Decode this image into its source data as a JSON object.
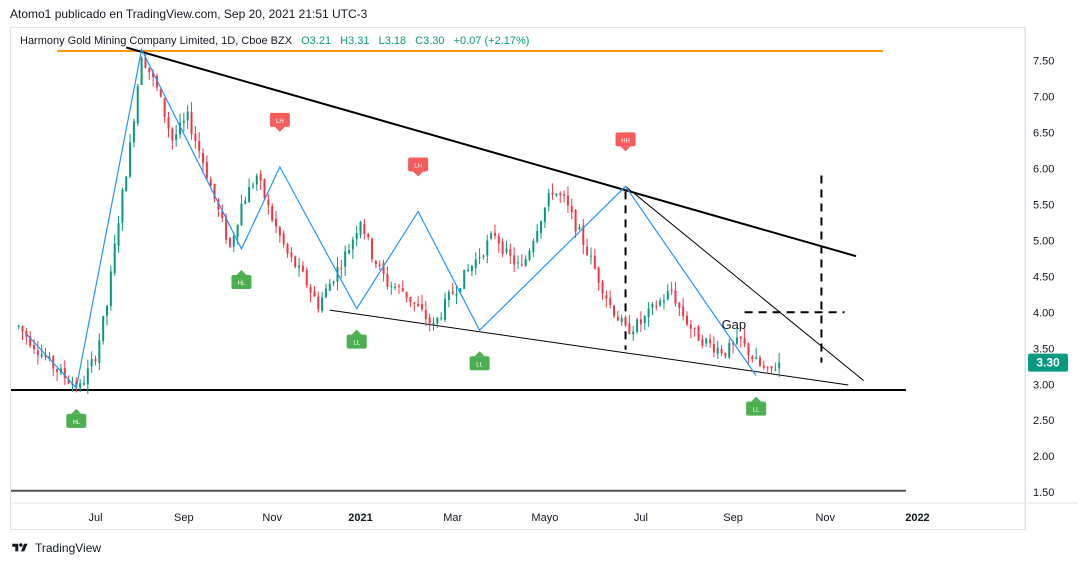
{
  "header": {
    "attribution": "Atomo1 publicado en TradingView.com, Sep 20, 2021 21:51 UTC-3"
  },
  "legend": {
    "symbol": "Harmony Gold Mining Company Limited, 1D, Cboe BZX",
    "open": "O3.21",
    "high": "H3.31",
    "low": "L3.18",
    "close": "C3.30",
    "change": "+0.07 (+2.17%)"
  },
  "footer": {
    "brand": "TradingView"
  },
  "chart_data": {
    "type": "candlestick",
    "title": "Harmony Gold Mining Company Limited, 1D, Cboe BZX",
    "ylim": [
      1.35,
      7.95
    ],
    "y_ticks": [
      "7.50",
      "7.00",
      "6.50",
      "6.00",
      "5.50",
      "5.00",
      "4.50",
      "4.00",
      "3.50",
      "3.00",
      "2.50",
      "2.00",
      "1.50"
    ],
    "x_ticks": [
      "Jul",
      "Sep",
      "Nov",
      "2021",
      "Mar",
      "Mayo",
      "Jul",
      "Sep",
      "Nov",
      "2022"
    ],
    "last_price": "3.30",
    "last_price_color": "#089981",
    "up_color": "#089981",
    "down_color": "#f23645",
    "price_path": [
      [
        0,
        3.8
      ],
      [
        4,
        3.55
      ],
      [
        8,
        3.3
      ],
      [
        12,
        3.1
      ],
      [
        16,
        2.95
      ],
      [
        20,
        3.4
      ],
      [
        23,
        4.1
      ],
      [
        26,
        5.3
      ],
      [
        29,
        6.3
      ],
      [
        32,
        7.6
      ],
      [
        36,
        7.1
      ],
      [
        40,
        6.4
      ],
      [
        44,
        6.7
      ],
      [
        48,
        6.1
      ],
      [
        52,
        5.4
      ],
      [
        55,
        4.9
      ],
      [
        58,
        5.5
      ],
      [
        62,
        5.9
      ],
      [
        66,
        5.3
      ],
      [
        70,
        4.8
      ],
      [
        74,
        4.5
      ],
      [
        78,
        4.1
      ],
      [
        82,
        4.5
      ],
      [
        86,
        4.9
      ],
      [
        89,
        5.3
      ],
      [
        92,
        4.8
      ],
      [
        96,
        4.4
      ],
      [
        100,
        4.3
      ],
      [
        104,
        4.05
      ],
      [
        108,
        3.8
      ],
      [
        112,
        4.2
      ],
      [
        116,
        4.5
      ],
      [
        120,
        4.8
      ],
      [
        124,
        5.1
      ],
      [
        127,
        4.8
      ],
      [
        131,
        4.6
      ],
      [
        135,
        5.2
      ],
      [
        139,
        5.7
      ],
      [
        142,
        5.55
      ],
      [
        146,
        5.1
      ],
      [
        150,
        4.6
      ],
      [
        154,
        4.1
      ],
      [
        158,
        3.75
      ],
      [
        162,
        3.85
      ],
      [
        166,
        4.1
      ],
      [
        170,
        4.3
      ],
      [
        172,
        4.05
      ],
      [
        176,
        3.7
      ],
      [
        180,
        3.55
      ],
      [
        184,
        3.45
      ],
      [
        188,
        3.6
      ],
      [
        192,
        3.3
      ],
      [
        195,
        3.15
      ],
      [
        198,
        3.3
      ]
    ],
    "zigzag": [
      [
        2,
        3.7
      ],
      [
        15,
        2.95
      ],
      [
        32,
        7.65
      ],
      [
        58,
        4.88
      ],
      [
        68,
        6.02
      ],
      [
        88,
        4.05
      ],
      [
        104,
        5.4
      ],
      [
        120,
        3.75
      ],
      [
        158,
        5.75
      ],
      [
        192,
        3.12
      ]
    ],
    "pivot_labels": [
      {
        "text": "HL",
        "date": 15,
        "price": 2.95,
        "dir": "below",
        "color": "#4caf50"
      },
      {
        "text": "LH",
        "date": 68,
        "price": 6.02,
        "dir": "above",
        "color": "#f55c5c"
      },
      {
        "text": "HL",
        "date": 58,
        "price": 4.88,
        "dir": "below",
        "color": "#4caf50"
      },
      {
        "text": "LL",
        "date": 88,
        "price": 4.05,
        "dir": "below",
        "color": "#4caf50"
      },
      {
        "text": "LH",
        "date": 104,
        "price": 5.4,
        "dir": "above",
        "color": "#f55c5c"
      },
      {
        "text": "LL",
        "date": 120,
        "price": 3.75,
        "dir": "below",
        "color": "#4caf50"
      },
      {
        "text": "HH",
        "date": 158,
        "price": 5.75,
        "dir": "above",
        "color": "#f55c5c"
      },
      {
        "text": "LL",
        "date": 192,
        "price": 3.12,
        "dir": "below",
        "color": "#4caf50"
      }
    ],
    "annotations": [
      {
        "text": "Gap",
        "date": 183,
        "price": 3.84
      }
    ],
    "x_tick_dates": [
      20,
      43,
      66,
      89,
      113,
      137,
      162,
      186,
      210,
      234
    ]
  }
}
